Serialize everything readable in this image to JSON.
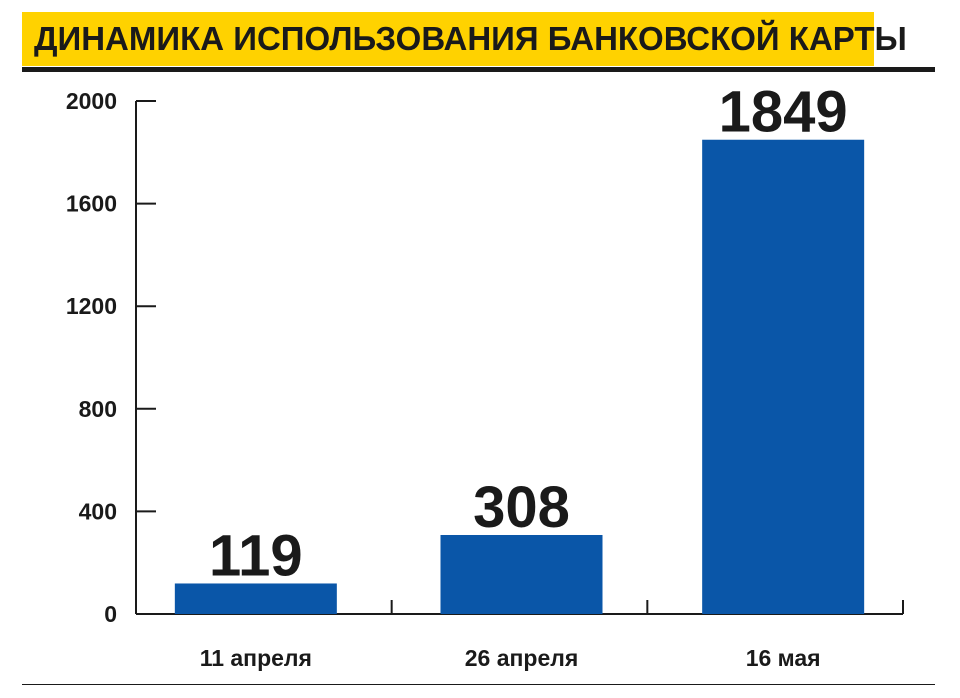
{
  "title": "ДИНАМИКА ИСПОЛЬЗОВАНИЯ БАНКОВСКОЙ КАРТЫ",
  "colors": {
    "title_band": "#FFD200",
    "bar": "#0A56A8",
    "axis": "#1a1a1a"
  },
  "chart_data": {
    "type": "bar",
    "title": "ДИНАМИКА ИСПОЛЬЗОВАНИЯ БАНКОВСКОЙ КАРТЫ",
    "categories": [
      "11 апреля",
      "26 апреля",
      "16 мая"
    ],
    "values": [
      119,
      308,
      1849
    ],
    "data_labels": [
      "119",
      "308",
      "1849"
    ],
    "yticks": [
      0,
      400,
      800,
      1200,
      1600,
      2000
    ],
    "ytick_labels": [
      "0",
      "400",
      "800",
      "1200",
      "1600",
      "2000"
    ],
    "ylim": [
      0,
      2000
    ],
    "xlabel": "",
    "ylabel": "",
    "grid": false,
    "legend": "none"
  }
}
